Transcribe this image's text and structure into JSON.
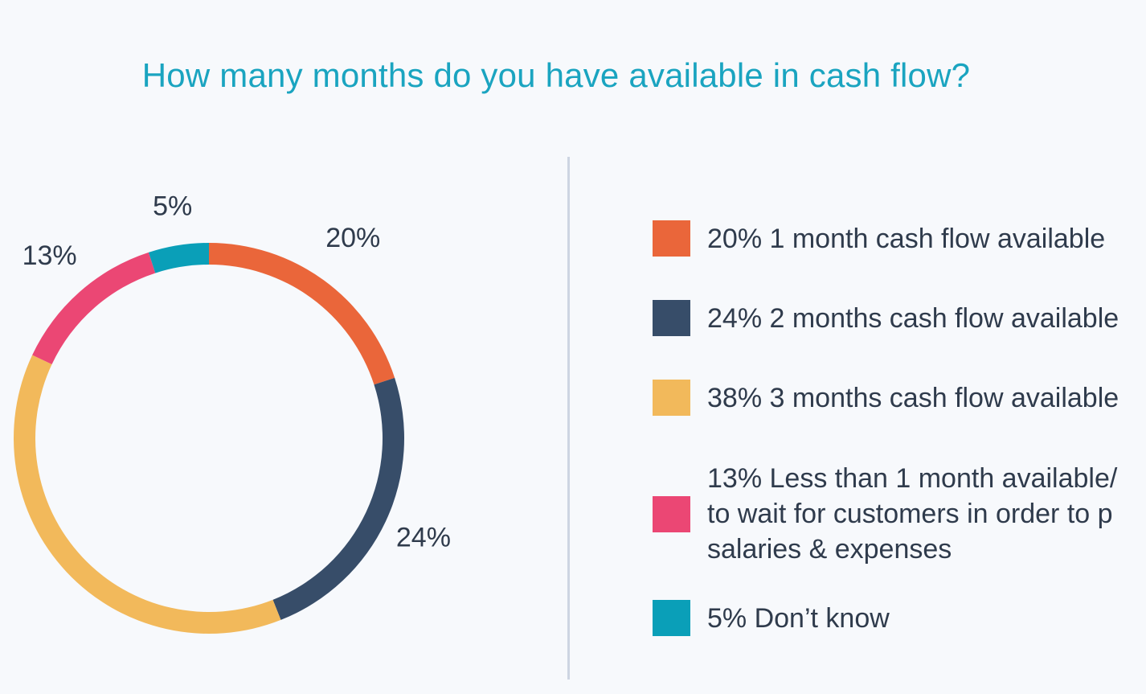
{
  "chart_data": {
    "type": "pie",
    "title": "How many months do you have available in cash flow?",
    "slices": [
      {
        "value": 20,
        "label": "20%",
        "legend": "20% 1 month cash flow available",
        "color": "#ea663a"
      },
      {
        "value": 24,
        "label": "24%",
        "legend": "24% 2 months cash flow available",
        "color": "#374d69"
      },
      {
        "value": 38,
        "label": "",
        "legend": "38% 3 months cash flow available",
        "color": "#f2b95b"
      },
      {
        "value": 13,
        "label": "13%",
        "legend": "13% Less than 1 month available/\nto wait for customers in order to p\nsalaries & expenses",
        "color": "#eb4774"
      },
      {
        "value": 5,
        "label": "5%",
        "legend": "5% Don’t know",
        "color": "#0a9fb8"
      }
    ],
    "legend_position": "right"
  }
}
